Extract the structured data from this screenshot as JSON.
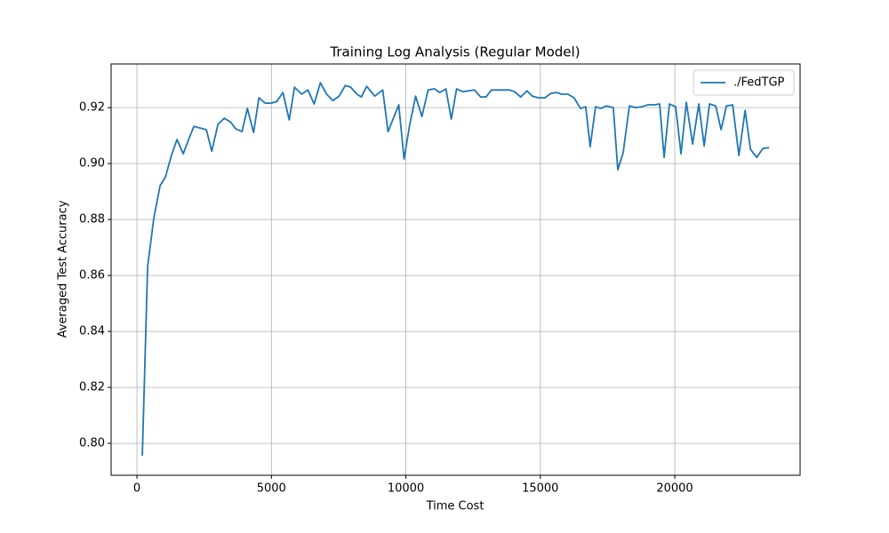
{
  "chart_data": {
    "type": "line",
    "title": "Training Log Analysis (Regular Model)",
    "x_label": "Time Cost",
    "y_label": "Averaged Test Accuracy",
    "x": [
      200,
      397,
      629,
      861,
      1060,
      1291,
      1490,
      1722,
      1921,
      2119,
      2583,
      2781,
      3013,
      3245,
      3477,
      3675,
      3907,
      4106,
      4338,
      4536,
      4768,
      5000,
      5199,
      5430,
      5662,
      5861,
      6126,
      6358,
      6589,
      6821,
      7053,
      7285,
      7517,
      7748,
      7947,
      8179,
      8344,
      8543,
      8841,
      9139,
      9338,
      9735,
      9934,
      10132,
      10364,
      10596,
      10828,
      11060,
      11258,
      11490,
      11689,
      11887,
      12119,
      12318,
      12550,
      12781,
      12980,
      13179,
      13411,
      13609,
      13841,
      14040,
      14272,
      14503,
      14702,
      14934,
      15166,
      15397,
      15596,
      15795,
      16026,
      16258,
      16490,
      16689,
      16854,
      17053,
      17252,
      17450,
      17715,
      17881,
      18079,
      18311,
      18543,
      18775,
      19007,
      19238,
      19437,
      19603,
      19801,
      20033,
      20232,
      20430,
      20662,
      20894,
      21093,
      21291,
      21523,
      21722,
      21921,
      22152,
      22384,
      22616,
      22815,
      23046,
      23278,
      23510
    ],
    "series": [
      {
        "name": "./FedTGP",
        "color": "#1f77b4",
        "values": [
          0.7956,
          0.8632,
          0.8806,
          0.8921,
          0.8952,
          0.9032,
          0.9086,
          0.9035,
          0.9086,
          0.9133,
          0.9121,
          0.9044,
          0.914,
          0.9162,
          0.9149,
          0.9124,
          0.9114,
          0.9197,
          0.9111,
          0.9235,
          0.9216,
          0.9216,
          0.9222,
          0.9254,
          0.9156,
          0.9273,
          0.9248,
          0.9263,
          0.9213,
          0.9289,
          0.9248,
          0.9225,
          0.9241,
          0.9279,
          0.9273,
          0.9248,
          0.9238,
          0.9276,
          0.9241,
          0.9263,
          0.9114,
          0.921,
          0.9016,
          0.9133,
          0.9241,
          0.9168,
          0.9263,
          0.9267,
          0.9254,
          0.9267,
          0.9159,
          0.9267,
          0.9257,
          0.926,
          0.9263,
          0.9238,
          0.9238,
          0.9263,
          0.9263,
          0.9263,
          0.9263,
          0.9257,
          0.9238,
          0.926,
          0.9241,
          0.9235,
          0.9235,
          0.9251,
          0.9254,
          0.9248,
          0.9248,
          0.9235,
          0.9197,
          0.9203,
          0.906,
          0.9203,
          0.9197,
          0.9206,
          0.92,
          0.8978,
          0.9038,
          0.9206,
          0.92,
          0.9203,
          0.921,
          0.921,
          0.9213,
          0.9022,
          0.9213,
          0.9203,
          0.9035,
          0.9219,
          0.907,
          0.9213,
          0.9063,
          0.9213,
          0.9206,
          0.9121,
          0.9206,
          0.921,
          0.9029,
          0.919,
          0.9051,
          0.9022,
          0.9054,
          0.9057
        ]
      }
    ],
    "xlim": [
      -960,
      24660
    ],
    "xticks": [
      0,
      5000,
      10000,
      15000,
      20000
    ],
    "ylim": [
      0.7886,
      0.9356
    ],
    "yticks": [
      {
        "value": 0.8,
        "label": "0.80"
      },
      0.82,
      0.84,
      0.86,
      0.88,
      {
        "value": 0.9,
        "label": "0.90"
      },
      0.92
    ],
    "grid": true,
    "legend": "upper right"
  }
}
